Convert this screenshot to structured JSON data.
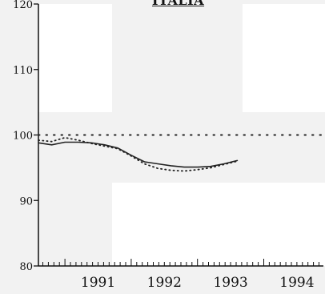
{
  "chart_data": {
    "type": "line",
    "title": "ITALIA",
    "xlabel": "",
    "ylabel": "",
    "xlim": [
      1990.6,
      1994.9
    ],
    "ylim": [
      80,
      120
    ],
    "y_ticks": [
      80,
      90,
      100,
      110,
      120
    ],
    "y_tick_labels": [
      "80",
      "90",
      "100",
      "110",
      "120"
    ],
    "x_ticks": [
      1991,
      1992,
      1993,
      1994
    ],
    "x_tick_labels": [
      "1991",
      "1992",
      "1993",
      "1994"
    ],
    "grid": false,
    "legend": "none",
    "reference_line": {
      "y": 100,
      "style": "dotted"
    },
    "series": [
      {
        "style": "solid",
        "color": "#222222",
        "points": [
          [
            1990.6,
            98.8
          ],
          [
            1990.8,
            98.5
          ],
          [
            1991.0,
            98.9
          ],
          [
            1991.2,
            98.9
          ],
          [
            1991.4,
            98.8
          ],
          [
            1991.6,
            98.5
          ],
          [
            1991.8,
            98.0
          ],
          [
            1992.0,
            96.9
          ],
          [
            1992.2,
            95.9
          ],
          [
            1992.4,
            95.6
          ],
          [
            1992.6,
            95.3
          ],
          [
            1992.8,
            95.1
          ],
          [
            1993.0,
            95.1
          ],
          [
            1993.2,
            95.2
          ],
          [
            1993.4,
            95.6
          ],
          [
            1993.6,
            96.1
          ]
        ]
      },
      {
        "style": "dotted",
        "color": "#222222",
        "points": [
          [
            1990.6,
            99.2
          ],
          [
            1990.8,
            99.0
          ],
          [
            1991.0,
            99.6
          ],
          [
            1991.2,
            99.2
          ],
          [
            1991.4,
            98.7
          ],
          [
            1991.6,
            98.3
          ],
          [
            1991.8,
            97.9
          ],
          [
            1992.0,
            96.8
          ],
          [
            1992.2,
            95.6
          ],
          [
            1992.4,
            94.9
          ],
          [
            1992.6,
            94.6
          ],
          [
            1992.8,
            94.5
          ],
          [
            1993.0,
            94.7
          ],
          [
            1993.2,
            95.0
          ],
          [
            1993.4,
            95.5
          ],
          [
            1993.6,
            96.0
          ]
        ]
      }
    ]
  }
}
